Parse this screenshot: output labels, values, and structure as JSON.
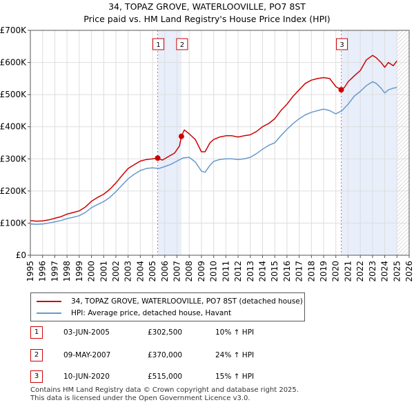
{
  "chart_data": {
    "type": "line",
    "title": "34, TOPAZ GROVE, WATERLOOVILLE, PO7 8ST",
    "subtitle": "Price paid vs. HM Land Registry's House Price Index (HPI)",
    "xlabel": "",
    "ylabel": "",
    "xlim": [
      1995,
      2026
    ],
    "ylim": [
      0,
      700000
    ],
    "y_ticks": [
      0,
      100000,
      200000,
      300000,
      400000,
      500000,
      600000,
      700000
    ],
    "y_tick_labels": [
      "£0",
      "£100K",
      "£200K",
      "£300K",
      "£400K",
      "£500K",
      "£600K",
      "£700K"
    ],
    "x_ticks": [
      1995,
      1996,
      1997,
      1998,
      1999,
      2000,
      2001,
      2002,
      2003,
      2004,
      2005,
      2006,
      2007,
      2008,
      2009,
      2010,
      2011,
      2012,
      2013,
      2014,
      2015,
      2016,
      2017,
      2018,
      2019,
      2020,
      2021,
      2022,
      2023,
      2024,
      2025,
      2026
    ],
    "x_tick_labels": [
      "1995",
      "1996",
      "1997",
      "1998",
      "1999",
      "2000",
      "2001",
      "2002",
      "2003",
      "2004",
      "2005",
      "2006",
      "2007",
      "2008",
      "2009",
      "2010",
      "2011",
      "2012",
      "2013",
      "2014",
      "2015",
      "2016",
      "2017",
      "2018",
      "2019",
      "2020",
      "2021",
      "2022",
      "2023",
      "2024",
      "2025",
      "2026"
    ],
    "grid": true,
    "shaded_periods": [
      [
        2005.42,
        2007.36
      ],
      [
        2020.44,
        2025.0
      ]
    ],
    "future_hatch_from": 2025.0,
    "series": [
      {
        "name": "34, TOPAZ GROVE, WATERLOOVILLE, PO7 8ST (detached house)",
        "color": "#cc0000",
        "x": [
          1995.0,
          1995.5,
          1996.0,
          1996.5,
          1997.0,
          1997.5,
          1998.0,
          1998.5,
          1999.0,
          1999.5,
          2000.0,
          2000.5,
          2001.0,
          2001.5,
          2002.0,
          2002.5,
          2003.0,
          2003.5,
          2004.0,
          2004.5,
          2005.0,
          2005.42,
          2005.8,
          2006.2,
          2006.8,
          2007.2,
          2007.36,
          2007.6,
          2008.0,
          2008.5,
          2009.0,
          2009.3,
          2009.7,
          2010.0,
          2010.5,
          2011.0,
          2011.5,
          2012.0,
          2012.5,
          2013.0,
          2013.5,
          2014.0,
          2014.5,
          2015.0,
          2015.5,
          2016.0,
          2016.5,
          2017.0,
          2017.5,
          2018.0,
          2018.5,
          2019.0,
          2019.5,
          2020.0,
          2020.44,
          2020.7,
          2021.0,
          2021.5,
          2022.0,
          2022.5,
          2023.0,
          2023.3,
          2023.7,
          2024.0,
          2024.3,
          2024.7,
          2025.0
        ],
        "values": [
          108000,
          106000,
          107000,
          110000,
          115000,
          120000,
          128000,
          133000,
          138000,
          150000,
          168000,
          180000,
          190000,
          205000,
          225000,
          248000,
          270000,
          282000,
          293000,
          298000,
          300000,
          302500,
          296000,
          305000,
          318000,
          340000,
          370000,
          390000,
          378000,
          360000,
          322000,
          322000,
          350000,
          360000,
          368000,
          372000,
          372000,
          368000,
          372000,
          375000,
          385000,
          400000,
          410000,
          425000,
          450000,
          470000,
          495000,
          515000,
          535000,
          545000,
          550000,
          553000,
          550000,
          525000,
          515000,
          522000,
          540000,
          558000,
          575000,
          608000,
          622000,
          615000,
          600000,
          585000,
          600000,
          590000,
          605000
        ]
      },
      {
        "name": "HPI: Average price, detached house, Havant",
        "color": "#6699cc",
        "x": [
          1995.0,
          1995.5,
          1996.0,
          1996.5,
          1997.0,
          1997.5,
          1998.0,
          1998.5,
          1999.0,
          1999.5,
          2000.0,
          2000.5,
          2001.0,
          2001.5,
          2002.0,
          2002.5,
          2003.0,
          2003.5,
          2004.0,
          2004.5,
          2005.0,
          2005.5,
          2006.0,
          2006.5,
          2007.0,
          2007.5,
          2008.0,
          2008.5,
          2009.0,
          2009.3,
          2009.7,
          2010.0,
          2010.5,
          2011.0,
          2011.5,
          2012.0,
          2012.5,
          2013.0,
          2013.5,
          2014.0,
          2014.5,
          2015.0,
          2015.5,
          2016.0,
          2016.5,
          2017.0,
          2017.5,
          2018.0,
          2018.5,
          2019.0,
          2019.5,
          2020.0,
          2020.5,
          2021.0,
          2021.5,
          2022.0,
          2022.5,
          2023.0,
          2023.3,
          2023.7,
          2024.0,
          2024.3,
          2024.7,
          2025.0
        ],
        "values": [
          97000,
          96000,
          97000,
          100000,
          104000,
          108000,
          114000,
          118000,
          123000,
          133000,
          148000,
          158000,
          167000,
          180000,
          198000,
          218000,
          238000,
          252000,
          264000,
          270000,
          272000,
          270000,
          276000,
          283000,
          293000,
          303000,
          305000,
          290000,
          262000,
          258000,
          280000,
          292000,
          298000,
          300000,
          300000,
          298000,
          300000,
          305000,
          316000,
          330000,
          342000,
          350000,
          372000,
          392000,
          410000,
          425000,
          437000,
          445000,
          450000,
          455000,
          450000,
          440000,
          450000,
          470000,
          495000,
          510000,
          528000,
          540000,
          535000,
          520000,
          505000,
          515000,
          520000,
          522000
        ]
      }
    ],
    "sales": [
      {
        "label": "1",
        "x": 2005.42,
        "value": 302500
      },
      {
        "label": "2",
        "x": 2007.36,
        "value": 370000
      },
      {
        "label": "3",
        "x": 2020.44,
        "value": 515000
      }
    ],
    "legend_position": "below"
  },
  "legend": {
    "property_label": "34, TOPAZ GROVE, WATERLOOVILLE, PO7 8ST (detached house)",
    "hpi_label": "HPI: Average price, detached house, Havant"
  },
  "sales_table": [
    {
      "num": "1",
      "date": "03-JUN-2005",
      "price": "£302,500",
      "hpi": "10% ↑ HPI"
    },
    {
      "num": "2",
      "date": "09-MAY-2007",
      "price": "£370,000",
      "hpi": "24% ↑ HPI"
    },
    {
      "num": "3",
      "date": "10-JUN-2020",
      "price": "£515,000",
      "hpi": "15% ↑ HPI"
    }
  ],
  "footer": {
    "line1": "Contains HM Land Registry data © Crown copyright and database right 2025.",
    "line2": "This data is licensed under the Open Government Licence v3.0."
  }
}
